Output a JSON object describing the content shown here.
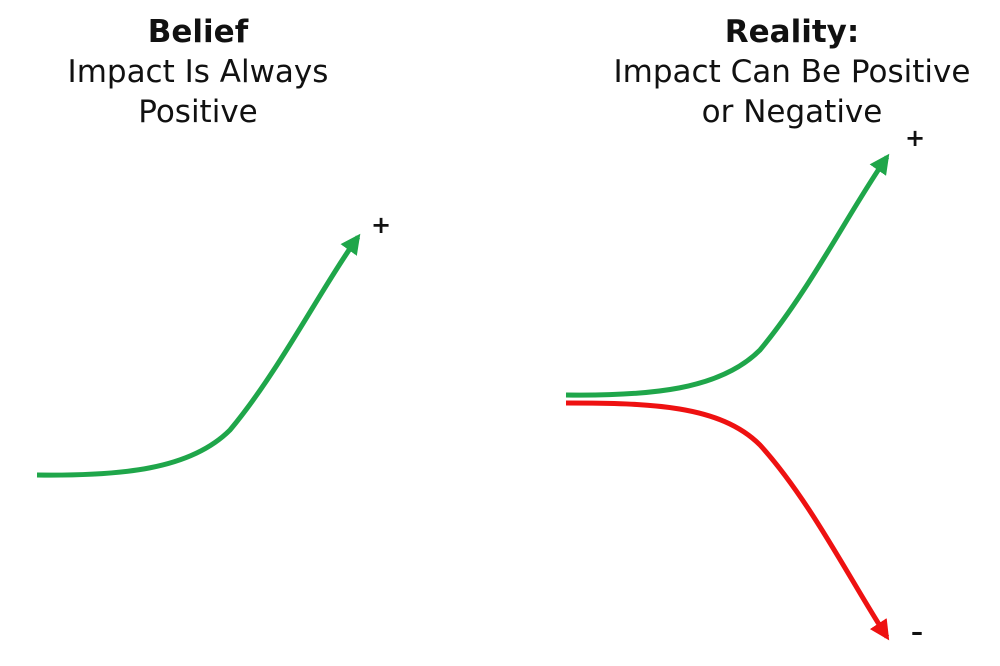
{
  "left": {
    "title": "Belief",
    "subtitle": [
      "Impact Is Always",
      "Positive"
    ],
    "plus": "+"
  },
  "right": {
    "title": "Reality:",
    "subtitle": [
      "Impact Can Be Positive",
      "or Negative"
    ],
    "plus": "+",
    "minus": "–"
  }
}
